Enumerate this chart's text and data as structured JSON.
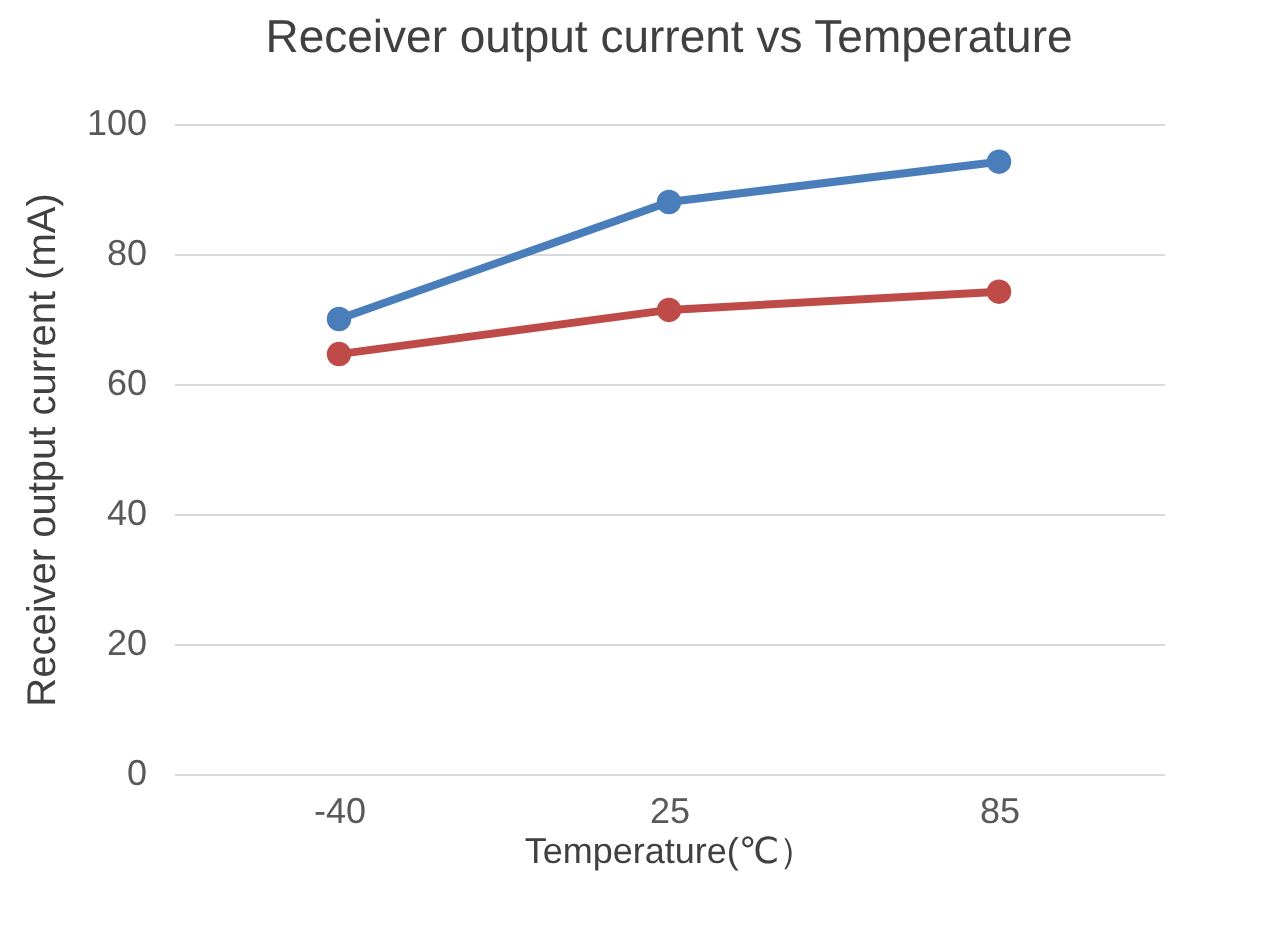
{
  "chart_data": {
    "type": "line",
    "title": "Receiver output current vs Temperature",
    "xlabel": "Temperature(℃）",
    "ylabel": "Receiver output current (mA)",
    "categories": [
      "-40",
      "25",
      "85"
    ],
    "series": [
      {
        "color": "#4a7ebb",
        "values": [
          70,
          88,
          94.2
        ]
      },
      {
        "color": "#be4b48",
        "values": [
          64.6,
          71.4,
          74.2
        ]
      }
    ],
    "ylim": [
      0,
      100
    ],
    "yticks": [
      0,
      20,
      40,
      60,
      80,
      100
    ],
    "grid": "y",
    "legend": false,
    "marker": "circle",
    "line_style": "solid"
  }
}
